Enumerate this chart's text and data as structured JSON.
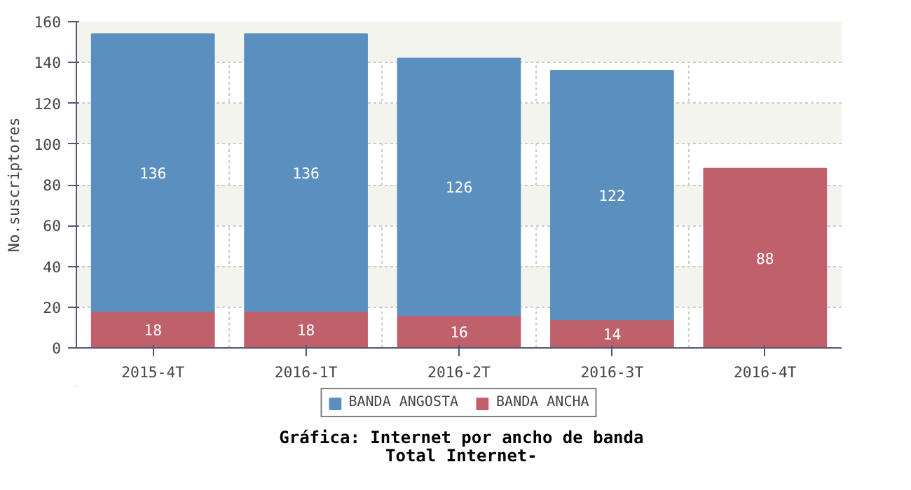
{
  "chart_data": {
    "type": "bar",
    "stacked": true,
    "title": "Gráfica: Internet por ancho de banda",
    "subtitle": "Total Internet-",
    "ylabel": "No.suscriptores",
    "categories": [
      "2015-4T",
      "2016-1T",
      "2016-2T",
      "2016-3T",
      "2016-4T"
    ],
    "series": [
      {
        "name": "BANDA ANCHA",
        "color": "#c0606a",
        "values": [
          18,
          18,
          16,
          14,
          88
        ]
      },
      {
        "name": "BANDA ANGOSTA",
        "color": "#5b8fbf",
        "values": [
          136,
          136,
          126,
          122,
          null
        ]
      }
    ],
    "ylim": [
      0,
      160
    ],
    "yticks": [
      0,
      20,
      40,
      60,
      80,
      100,
      120,
      140,
      160
    ],
    "grid": true,
    "legend": "bottom",
    "data_labels": true
  }
}
